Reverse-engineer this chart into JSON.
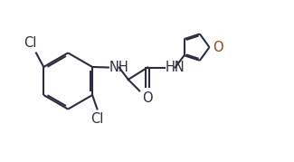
{
  "bond_color": "#2d2d3f",
  "heteroatom_color": "#8B4513",
  "bg_color": "#ffffff",
  "line_width": 1.5,
  "font_size": 10.5,
  "fig_width": 3.25,
  "fig_height": 1.79,
  "dpi": 100,
  "xlim": [
    0,
    10.5
  ],
  "ylim": [
    0,
    6.0
  ]
}
